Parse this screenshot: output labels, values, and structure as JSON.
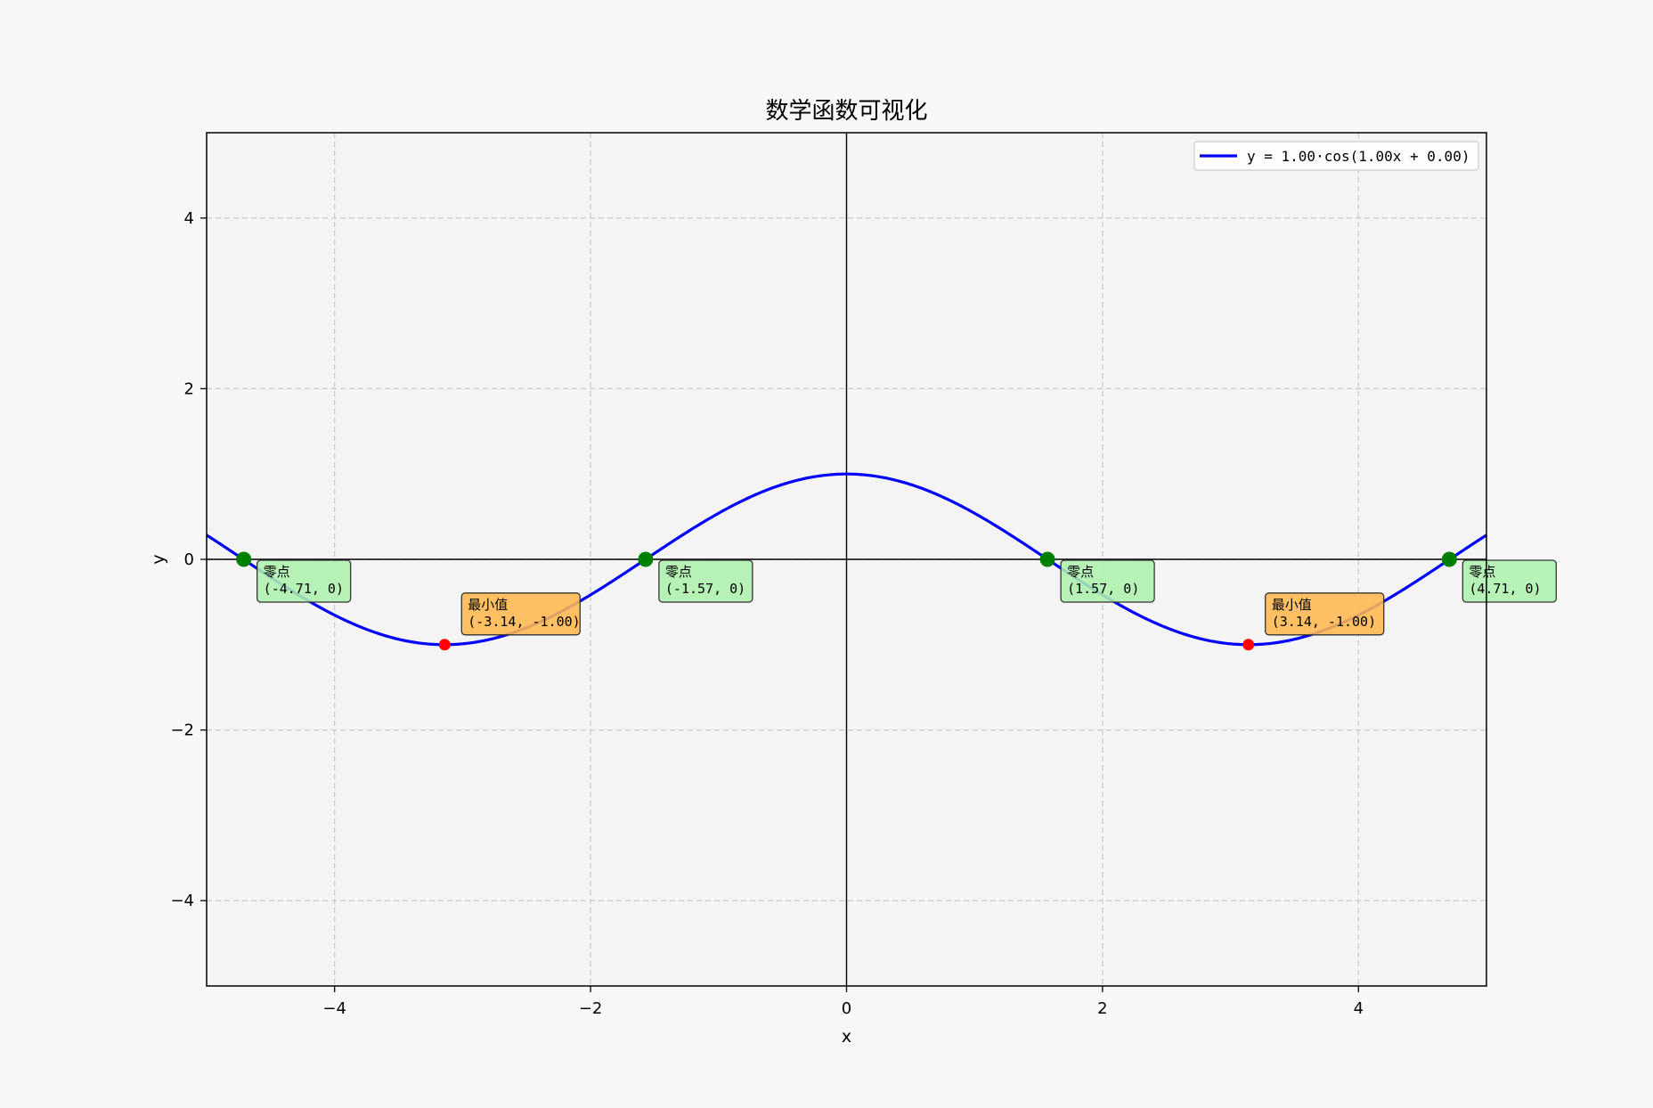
{
  "chart_data": {
    "type": "line",
    "title": "数学函数可视化",
    "xlabel": "x",
    "ylabel": "y",
    "xlim": [
      -5,
      5
    ],
    "ylim": [
      -5,
      5
    ],
    "xticks": [
      -4,
      -2,
      0,
      2,
      4
    ],
    "yticks": [
      -4,
      -2,
      0,
      2,
      4
    ],
    "xtick_labels": [
      "−4",
      "−2",
      "0",
      "2",
      "4"
    ],
    "ytick_labels": [
      "−4",
      "−2",
      "0",
      "2",
      "4"
    ],
    "grid": true,
    "grid_style": "dashed",
    "legend_position": "top-right",
    "series": [
      {
        "name": "y = 1.00·cos(1.00x + 0.00)",
        "function": "cos",
        "amplitude": 1.0,
        "frequency": 1.0,
        "phase": 0.0,
        "color": "#0000ff"
      }
    ],
    "zeros": {
      "color": "#008000",
      "points": [
        {
          "x": -4.71,
          "y": 0,
          "label": "零点",
          "coords": "(-4.71, 0)"
        },
        {
          "x": -1.57,
          "y": 0,
          "label": "零点",
          "coords": "(-1.57, 0)"
        },
        {
          "x": 1.57,
          "y": 0,
          "label": "零点",
          "coords": "(1.57, 0)"
        },
        {
          "x": 4.71,
          "y": 0,
          "label": "零点",
          "coords": "(4.71, 0)"
        }
      ]
    },
    "minima": {
      "color": "#ff0000",
      "points": [
        {
          "x": -3.14,
          "y": -1.0,
          "label": "最小值",
          "coords": "(-3.14, -1.00)"
        },
        {
          "x": 3.14,
          "y": -1.0,
          "label": "最小值",
          "coords": "(3.14, -1.00)"
        }
      ]
    },
    "colors": {
      "page_bg": "#f8f8f8",
      "plot_bg": "#f4f4f4",
      "grid": "#c8c8c8",
      "zero_box": "#adf0ad",
      "min_box": "#ffb84d"
    }
  }
}
